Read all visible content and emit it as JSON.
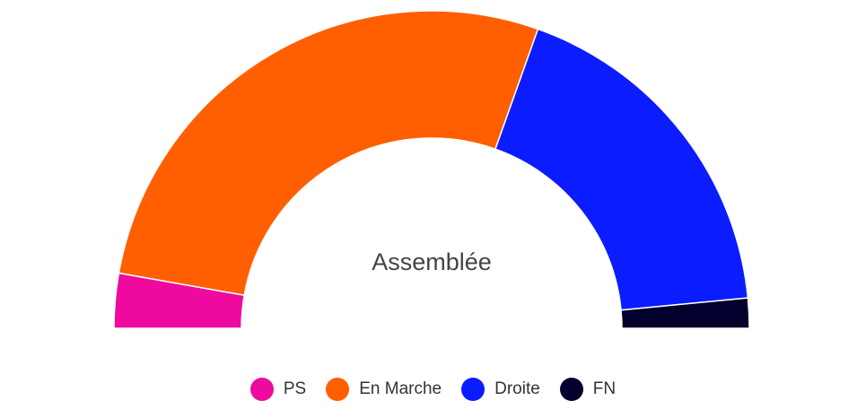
{
  "chart_data": {
    "type": "pie",
    "variant": "semicircle-donut",
    "title": "",
    "center_label": "Assemblée",
    "categories": [
      "PS",
      "En Marche",
      "Droite",
      "FN"
    ],
    "values": [
      31,
      308,
      201,
      17
    ],
    "colors": [
      "#ee0a9e",
      "#ff5f00",
      "#0b1cff",
      "#04002d"
    ],
    "legend_position": "bottom-center"
  }
}
